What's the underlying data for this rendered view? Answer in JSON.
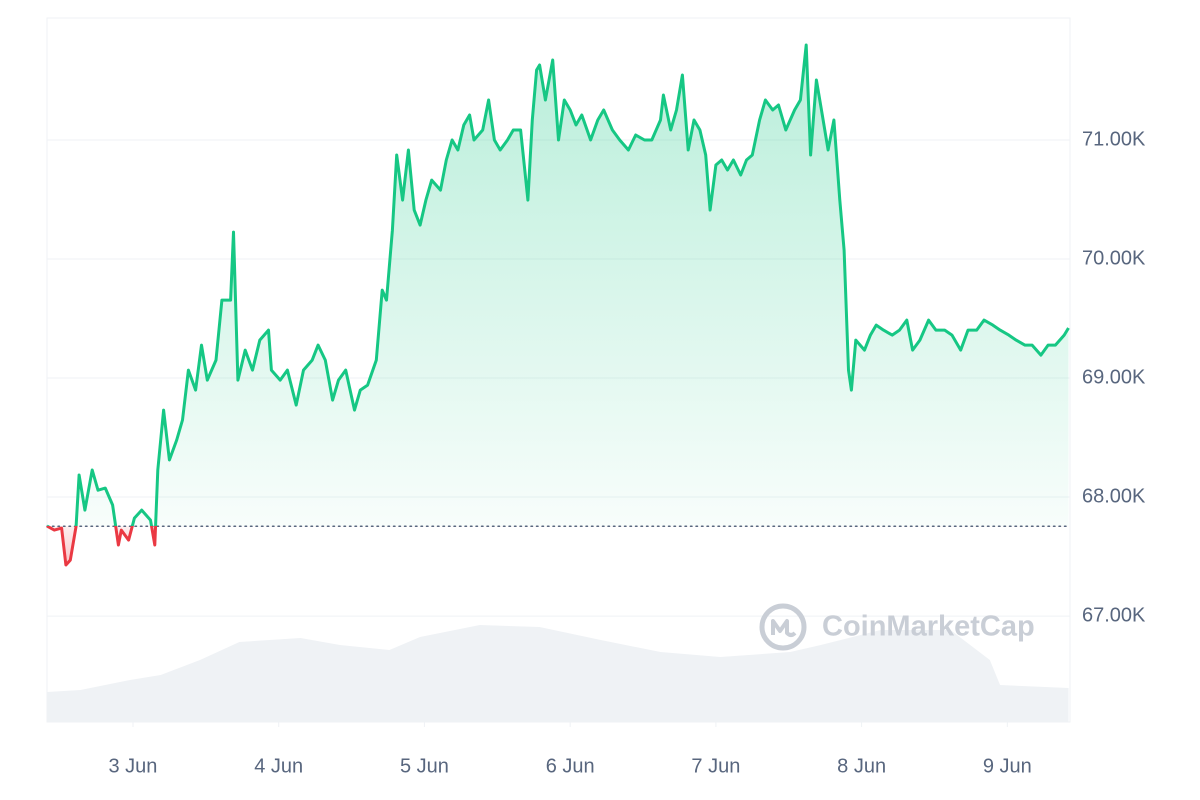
{
  "chart_data": {
    "type": "line",
    "watermark": "CoinMarketCap",
    "xlim": [
      -0.59,
      6.43
    ],
    "xticks": [
      {
        "value": 0,
        "label": "3 Jun"
      },
      {
        "value": 1,
        "label": "4 Jun"
      },
      {
        "value": 2,
        "label": "5 Jun"
      },
      {
        "value": 3,
        "label": "6 Jun"
      },
      {
        "value": 4,
        "label": "7 Jun"
      },
      {
        "value": 5,
        "label": "8 Jun"
      },
      {
        "value": 6,
        "label": "9 Jun"
      }
    ],
    "ylim": [
      66110,
      72025
    ],
    "yticks": [
      {
        "value": 67000,
        "label": "67.00K"
      },
      {
        "value": 68000,
        "label": "68.00K"
      },
      {
        "value": 69000,
        "label": "69.00K"
      },
      {
        "value": 70000,
        "label": "70.00K"
      },
      {
        "value": 71000,
        "label": "71.00K"
      }
    ],
    "grid": true,
    "baseline": 67755,
    "up_color": "#16c784",
    "down_color": "#ea3943",
    "series": [
      {
        "x": [
          -0.59,
          -0.54,
          -0.49,
          -0.46,
          -0.43,
          -0.39,
          -0.37,
          -0.33,
          -0.28,
          -0.24,
          -0.19,
          -0.14,
          -0.1,
          -0.08,
          -0.03,
          0.01,
          0.06,
          0.12,
          0.15,
          0.17,
          0.21,
          0.25,
          0.3,
          0.34,
          0.38,
          0.43,
          0.47,
          0.51,
          0.57,
          0.61,
          0.67,
          0.69,
          0.72,
          0.77,
          0.82,
          0.87,
          0.93,
          0.95,
          1.01,
          1.06,
          1.12,
          1.17,
          1.23,
          1.27,
          1.32,
          1.37,
          1.41,
          1.46,
          1.52,
          1.56,
          1.61,
          1.67,
          1.71,
          1.74,
          1.78,
          1.81,
          1.85,
          1.89,
          1.93,
          1.97,
          2.01,
          2.05,
          2.11,
          2.15,
          2.19,
          2.23,
          2.27,
          2.31,
          2.34,
          2.4,
          2.44,
          2.48,
          2.52,
          2.57,
          2.61,
          2.66,
          2.71,
          2.74,
          2.77,
          2.79,
          2.83,
          2.88,
          2.92,
          2.96,
          3.0,
          3.04,
          3.08,
          3.14,
          3.19,
          3.23,
          3.29,
          3.34,
          3.4,
          3.45,
          3.51,
          3.56,
          3.62,
          3.64,
          3.69,
          3.73,
          3.77,
          3.81,
          3.85,
          3.89,
          3.93,
          3.96,
          4.0,
          4.04,
          4.08,
          4.12,
          4.17,
          4.21,
          4.25,
          4.3,
          4.34,
          4.39,
          4.43,
          4.48,
          4.54,
          4.58,
          4.62,
          4.65,
          4.69,
          4.73,
          4.77,
          4.81,
          4.85,
          4.88,
          4.91,
          4.93,
          4.96,
          5.02,
          5.06,
          5.1,
          5.15,
          5.21,
          5.26,
          5.31,
          5.35,
          5.4,
          5.46,
          5.51,
          5.57,
          5.62,
          5.68,
          5.73,
          5.79,
          5.84,
          5.9,
          5.95,
          6.01,
          6.06,
          6.12,
          6.17,
          6.23,
          6.28,
          6.33,
          6.39,
          6.42
        ],
        "values": [
          67756,
          67722,
          67739,
          67429,
          67470,
          67756,
          68185,
          67890,
          68227,
          68058,
          68075,
          67933,
          67597,
          67722,
          67638,
          67823,
          67890,
          67806,
          67597,
          68227,
          68731,
          68311,
          68479,
          68647,
          69067,
          68899,
          69277,
          68983,
          69151,
          69655,
          69655,
          70226,
          68983,
          69235,
          69067,
          69319,
          69403,
          69067,
          68983,
          69067,
          68773,
          69067,
          69151,
          69277,
          69151,
          68815,
          68983,
          69067,
          68731,
          68899,
          68941,
          69151,
          69739,
          69655,
          70243,
          70874,
          70495,
          70916,
          70411,
          70285,
          70495,
          70663,
          70579,
          70832,
          71000,
          70916,
          71126,
          71210,
          71000,
          71084,
          71336,
          71000,
          70916,
          71000,
          71084,
          71084,
          70495,
          71168,
          71588,
          71630,
          71336,
          71672,
          71000,
          71336,
          71252,
          71126,
          71210,
          71000,
          71168,
          71252,
          71084,
          71000,
          70916,
          71042,
          71000,
          71000,
          71168,
          71378,
          71084,
          71252,
          71546,
          70916,
          71168,
          71084,
          70874,
          70411,
          70790,
          70832,
          70748,
          70832,
          70706,
          70832,
          70874,
          71168,
          71336,
          71252,
          71294,
          71084,
          71252,
          71336,
          71798,
          70874,
          71504,
          71210,
          70916,
          71168,
          70495,
          70075,
          69067,
          68899,
          69319,
          69235,
          69361,
          69445,
          69403,
          69361,
          69403,
          69487,
          69235,
          69319,
          69487,
          69403,
          69403,
          69361,
          69235,
          69403,
          69403,
          69487,
          69445,
          69403,
          69361,
          69319,
          69277,
          69277,
          69193,
          69277,
          69277,
          69361,
          69420
        ]
      }
    ],
    "volume": {
      "color": "#eff2f5",
      "x": [
        -0.59,
        -0.36,
        -0.02,
        0.19,
        0.46,
        0.73,
        1.15,
        1.42,
        1.76,
        1.97,
        2.38,
        2.79,
        3.21,
        3.62,
        4.03,
        4.51,
        4.72,
        5.13,
        5.61,
        5.88,
        5.95,
        6.42
      ],
      "values": [
        30,
        32,
        42,
        47,
        62,
        80,
        84,
        77,
        72,
        85,
        97,
        95,
        82,
        70,
        65,
        70,
        77,
        92,
        92,
        62,
        37,
        34
      ]
    }
  }
}
